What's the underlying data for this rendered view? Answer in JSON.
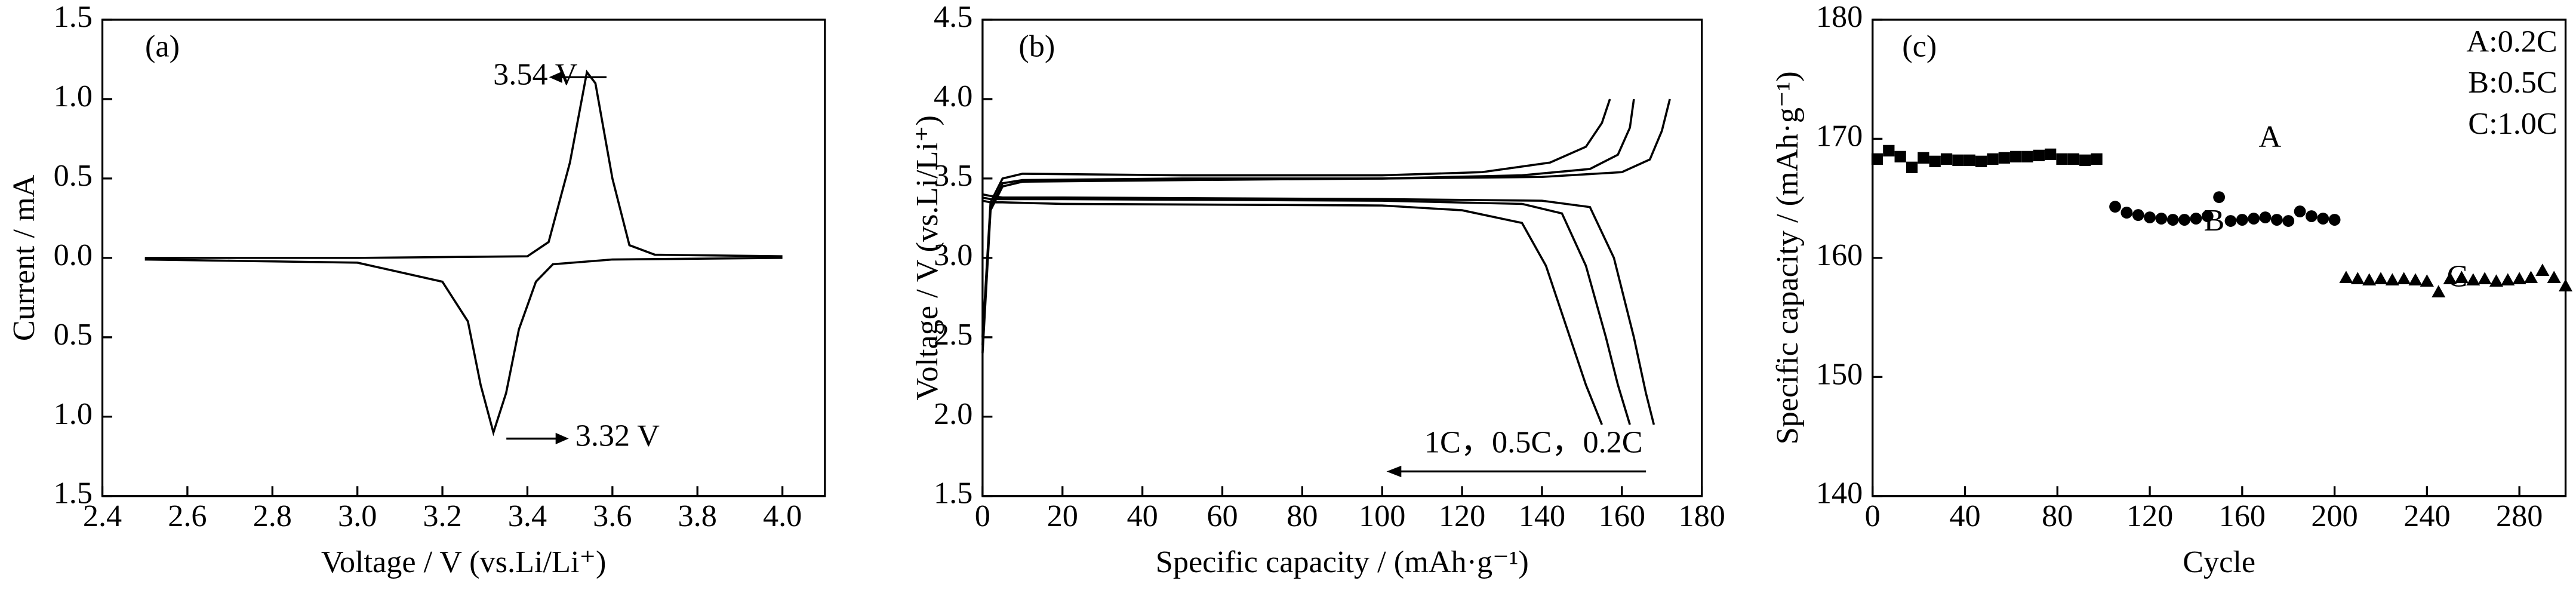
{
  "chart_data": [
    {
      "type": "line",
      "panel_label": "(a)",
      "x_label": "Voltage / V (vs.Li/Li⁺)",
      "y_label": "Current / mA",
      "xlim": [
        2.4,
        4.1
      ],
      "xticks": [
        2.4,
        2.6,
        2.8,
        {
          "value": 3,
          "label": "3.0"
        },
        3.2,
        3.4,
        3.6,
        3.8,
        {
          "value": 4,
          "label": "4.0"
        }
      ],
      "ylim": [
        -1.5,
        1.5
      ],
      "yticks": [
        {
          "value": -1.5,
          "label": "1.5"
        },
        {
          "value": -1,
          "label": "1.0"
        },
        {
          "value": -0.5,
          "label": "0.5"
        },
        {
          "value": 0,
          "label": "0.0"
        },
        0.5,
        {
          "value": 1,
          "label": "1.0"
        },
        1.5
      ],
      "annotations": [
        "3.54 V",
        "3.32 V"
      ],
      "series": [
        {
          "color": "#000",
          "x": [
            2.5,
            3.0,
            3.4,
            3.45,
            3.5,
            3.54,
            3.56,
            3.6,
            3.64,
            3.7,
            4.0
          ],
          "values": [
            0,
            0,
            0.01,
            0.1,
            0.6,
            1.17,
            1.1,
            0.5,
            0.08,
            0.02,
            0.01
          ]
        },
        {
          "color": "#000",
          "x": [
            4.0,
            3.6,
            3.46,
            3.42,
            3.38,
            3.35,
            3.32,
            3.29,
            3.26,
            3.2,
            3.0,
            2.5
          ],
          "values": [
            0,
            -0.01,
            -0.04,
            -0.15,
            -0.45,
            -0.85,
            -1.1,
            -0.8,
            -0.4,
            -0.15,
            -0.03,
            -0.01
          ]
        }
      ]
    },
    {
      "type": "line",
      "panel_label": "(b)",
      "x_label": "Specific capacity / (mAh·g⁻¹)",
      "y_label": "Voltage / V (vs.Li/Li⁺)",
      "xlim": [
        0,
        180
      ],
      "xticks": [
        0,
        20,
        40,
        60,
        80,
        100,
        120,
        140,
        160,
        180
      ],
      "ylim": [
        1.5,
        4.5
      ],
      "yticks": [
        1.5,
        {
          "value": 2,
          "label": "2.0"
        },
        2.5,
        {
          "value": 3,
          "label": "3.0"
        },
        3.5,
        {
          "value": 4,
          "label": "4.0"
        },
        4.5
      ],
      "annotations": [
        "1C，0.5C，0.2C"
      ],
      "series": [
        {
          "color": "#000",
          "x": [
            0,
            2,
            5,
            10,
            50,
            100,
            140,
            160,
            167,
            170,
            172
          ],
          "values": [
            2.4,
            3.3,
            3.45,
            3.48,
            3.49,
            3.5,
            3.51,
            3.54,
            3.62,
            3.8,
            4.0
          ]
        },
        {
          "color": "#000",
          "x": [
            0,
            2,
            5,
            10,
            50,
            100,
            135,
            152,
            159,
            162,
            163
          ],
          "values": [
            2.45,
            3.32,
            3.47,
            3.49,
            3.5,
            3.5,
            3.52,
            3.56,
            3.65,
            3.82,
            4.0
          ]
        },
        {
          "color": "#000",
          "x": [
            0,
            2,
            5,
            10,
            50,
            100,
            125,
            142,
            151,
            155,
            157
          ],
          "values": [
            2.5,
            3.35,
            3.5,
            3.53,
            3.52,
            3.52,
            3.54,
            3.6,
            3.7,
            3.85,
            4.0
          ]
        },
        {
          "color": "#000",
          "x": [
            0,
            2,
            5,
            20,
            100,
            140,
            152,
            158,
            163,
            166,
            168
          ],
          "values": [
            3.4,
            3.39,
            3.38,
            3.38,
            3.37,
            3.36,
            3.32,
            3.0,
            2.5,
            2.15,
            1.95
          ]
        },
        {
          "color": "#000",
          "x": [
            0,
            2,
            5,
            20,
            100,
            135,
            145,
            151,
            156,
            159,
            162
          ],
          "values": [
            3.38,
            3.37,
            3.37,
            3.37,
            3.36,
            3.34,
            3.28,
            2.95,
            2.5,
            2.2,
            1.95
          ]
        },
        {
          "color": "#000",
          "x": [
            0,
            2,
            5,
            20,
            100,
            120,
            135,
            141,
            147,
            151,
            155
          ],
          "values": [
            3.36,
            3.35,
            3.35,
            3.34,
            3.33,
            3.3,
            3.22,
            2.95,
            2.5,
            2.2,
            1.95
          ]
        }
      ]
    },
    {
      "type": "scatter",
      "panel_label": "(c)",
      "x_label": "Cycle",
      "y_label": "Specific capacity / (mAh·g⁻¹)",
      "xlim": [
        0,
        300
      ],
      "xticks": [
        0,
        40,
        80,
        120,
        160,
        200,
        240,
        280
      ],
      "ylim": [
        140,
        180
      ],
      "yticks": [
        140,
        150,
        160,
        170,
        180
      ],
      "annotations": [
        "A:0.2C",
        "B:0.5C",
        "C:1.0C"
      ],
      "series": [
        {
          "name": "A",
          "color": "#000",
          "marker": "square",
          "x": [
            2,
            7,
            12,
            17,
            22,
            27,
            32,
            37,
            42,
            47,
            52,
            57,
            62,
            67,
            72,
            77,
            82,
            87,
            92,
            97
          ],
          "values": [
            168.3,
            169,
            168.5,
            167.6,
            168.4,
            168.1,
            168.3,
            168.2,
            168.2,
            168.1,
            168.3,
            168.4,
            168.5,
            168.5,
            168.6,
            168.7,
            168.3,
            168.3,
            168.2,
            168.3
          ]
        },
        {
          "name": "B",
          "color": "#000",
          "marker": "circle",
          "x": [
            105,
            110,
            115,
            120,
            125,
            130,
            135,
            140,
            145,
            150,
            155,
            160,
            165,
            170,
            175,
            180,
            185,
            190,
            195,
            200
          ],
          "values": [
            164.3,
            163.8,
            163.6,
            163.4,
            163.3,
            163.2,
            163.2,
            163.3,
            163.5,
            165.1,
            163.1,
            163.2,
            163.3,
            163.4,
            163.2,
            163.1,
            163.9,
            163.5,
            163.3,
            163.2
          ]
        },
        {
          "name": "C",
          "color": "#000",
          "marker": "triangle",
          "x": [
            205,
            210,
            215,
            220,
            225,
            230,
            235,
            240,
            245,
            250,
            255,
            260,
            265,
            270,
            275,
            280,
            285,
            290,
            295,
            300
          ],
          "values": [
            158.3,
            158.2,
            158.1,
            158.2,
            158.1,
            158.2,
            158.1,
            158.0,
            157.1,
            158.2,
            158.3,
            158.1,
            158.2,
            158.0,
            158.1,
            158.2,
            158.3,
            158.9,
            158.3,
            157.6
          ]
        }
      ]
    }
  ]
}
